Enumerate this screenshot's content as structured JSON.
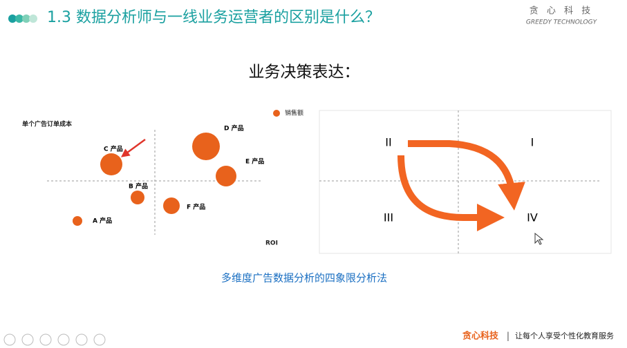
{
  "header": {
    "title": "1.3 数据分析师与一线业务运营者的区别是什么？",
    "brand": "贪 心 科 技",
    "brand_sub": "GREEDY TECHNOLOGY"
  },
  "heading": "业务决策表达：",
  "left_chart": {
    "y_label": "单个广告订单成本",
    "x_label": "ROI",
    "legend": "销售额",
    "products": [
      "C 产品",
      "D 产品",
      "E 产品",
      "B 产品",
      "F 产品",
      "A 产品"
    ]
  },
  "right_chart": {
    "quadrants": [
      "II",
      "I",
      "III",
      "IV"
    ]
  },
  "caption": "多维度广告数据分析的四象限分析法",
  "footer": {
    "brand": "贪心科技",
    "separator": "|",
    "tagline": "让每个人享受个性化教育服务"
  }
}
